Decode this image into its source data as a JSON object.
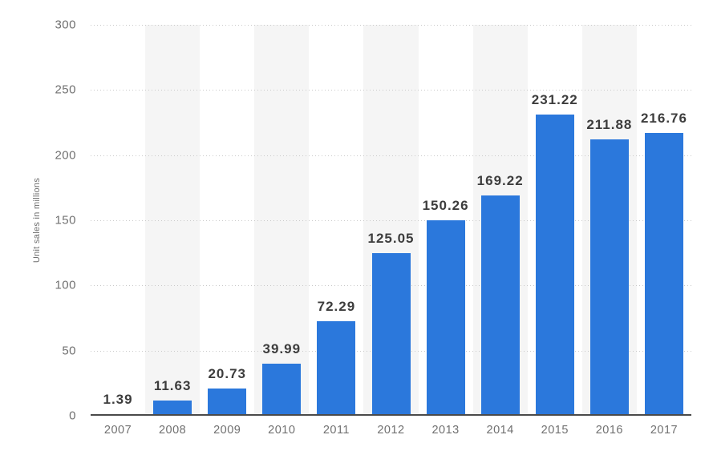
{
  "chart_data": {
    "type": "bar",
    "title": "",
    "categories": [
      "2007",
      "2008",
      "2009",
      "2010",
      "2011",
      "2012",
      "2013",
      "2014",
      "2015",
      "2016",
      "2017"
    ],
    "values": [
      1.39,
      11.63,
      20.73,
      39.99,
      72.29,
      125.05,
      150.26,
      169.22,
      231.22,
      211.88,
      216.76
    ],
    "value_labels": [
      "1.39",
      "11.63",
      "20.73",
      "39.99",
      "72.29",
      "125.05",
      "150.26",
      "169.22",
      "231.22",
      "211.88",
      "216.76"
    ],
    "xlabel": "",
    "ylabel": "Unit sales in millions",
    "ylim": [
      0,
      300
    ],
    "yticks": [
      0,
      50,
      100,
      150,
      200,
      250,
      300
    ],
    "grid": "horizontal-dotted",
    "legend": "none",
    "plot_background": "alternating vertical stripes behind even-year columns",
    "colors": {
      "bar": "#2b78dc",
      "stripe": "#f5f5f5",
      "gridline": "#c9c9c9",
      "axis_line": "#4a4a4a",
      "value_label": "#3d3d3d",
      "tick_label": "#707070",
      "axis_title": "#6e6e6e",
      "background": "#ffffff"
    }
  }
}
